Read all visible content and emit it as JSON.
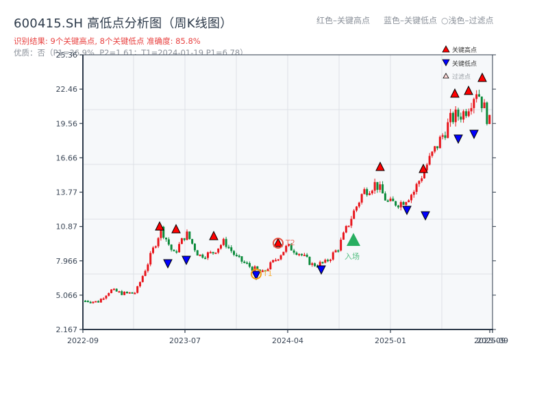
{
  "header": {
    "title": "600415.SH 高低点分析图（周K线图）",
    "result_line": "识别结果: 9个关键高点, 8个关键低点  准确度: 85.8%",
    "quality_line": "优质：否（P1=36.9%, P2=1.61；T1=2024-01-19 P1=6.78）"
  },
  "top_legend": {
    "red": "红色–关键高点",
    "blue": "蓝色–关键低点",
    "light": "○浅色–过滤点"
  },
  "chart_legend": {
    "high": "关键高点",
    "low": "关键低点",
    "filtered": "过滤点"
  },
  "annotations": {
    "t1": "T1",
    "t2": "T2",
    "entry": "入场"
  },
  "colors": {
    "up": "#e8141a",
    "down": "#0a8a3a",
    "high_marker": "#ff0000",
    "low_marker": "#0000ff",
    "t1_ring": "#f39c12",
    "t2_ring": "#e74c3c",
    "entry": "#27ae60",
    "axis": "#2d3a4a",
    "grid": "#dde1e6",
    "plot_bg": "#f6f8fa"
  },
  "chart_data": {
    "type": "candlestick",
    "title": "600415.SH 高低点分析图（周K线图）",
    "xlabel": "",
    "ylabel": "",
    "ylim": [
      2.167,
      25.36
    ],
    "y_ticks": [
      "25.36",
      "22.46",
      "19.56",
      "16.66",
      "13.77",
      "10.87",
      "7.966",
      "5.066",
      "2.167"
    ],
    "x_ticks": [
      "2022-09",
      "2023-07",
      "2024-04",
      "2025-01",
      "2025-09",
      "2025-09"
    ],
    "grid": true,
    "legend_position": "upper right",
    "legend": [
      "关键高点",
      "关键低点",
      "过滤点"
    ],
    "key_highs_count": 9,
    "key_lows_count": 8,
    "accuracy": "85.8%",
    "key_highs": [
      {
        "x_approx": "2023-04",
        "y": 10.9
      },
      {
        "x_approx": "2023-05",
        "y": 10.6
      },
      {
        "x_approx": "2023-09",
        "y": 10.0
      },
      {
        "x_approx": "2024-03",
        "y": 9.5,
        "label": "T2"
      },
      {
        "x_approx": "2024-12",
        "y": 15.8
      },
      {
        "x_approx": "2025-03",
        "y": 15.7
      },
      {
        "x_approx": "2025-06",
        "y": 22.0
      },
      {
        "x_approx": "2025-07",
        "y": 22.3
      },
      {
        "x_approx": "2025-08",
        "y": 23.4
      }
    ],
    "key_lows": [
      {
        "x_approx": "2023-04",
        "y": 7.9
      },
      {
        "x_approx": "2023-06",
        "y": 8.0
      },
      {
        "x_approx": "2024-01-19",
        "y": 6.78,
        "label": "T1"
      },
      {
        "x_approx": "2024-07",
        "y": 7.3
      },
      {
        "x_approx": "2025-02",
        "y": 12.3
      },
      {
        "x_approx": "2025-03",
        "y": 11.7
      },
      {
        "x_approx": "2025-06",
        "y": 18.6
      },
      {
        "x_approx": "2025-07",
        "y": 18.9
      }
    ],
    "entry": {
      "x_approx": "2024-09",
      "y": 9.8,
      "label": "入场"
    },
    "price_path_approx": [
      [
        "2022-09",
        4.6
      ],
      [
        "2022-11",
        4.5
      ],
      [
        "2022-12",
        5.5
      ],
      [
        "2023-02",
        5.2
      ],
      [
        "2023-03",
        5.3
      ],
      [
        "2023-04",
        7.9
      ],
      [
        "2023-04",
        10.7
      ],
      [
        "2023-05",
        8.5
      ],
      [
        "2023-06",
        10.3
      ],
      [
        "2023-06",
        8.4
      ],
      [
        "2023-08",
        8.6
      ],
      [
        "2023-09",
        9.6
      ],
      [
        "2023-10",
        8.2
      ],
      [
        "2023-12",
        7.5
      ],
      [
        "2024-01",
        6.9
      ],
      [
        "2024-02",
        8.0
      ],
      [
        "2024-03",
        9.2
      ],
      [
        "2024-05",
        8.6
      ],
      [
        "2024-07",
        7.6
      ],
      [
        "2024-08",
        7.8
      ],
      [
        "2024-09",
        9.0
      ],
      [
        "2024-10",
        11.5
      ],
      [
        "2024-11",
        13.8
      ],
      [
        "2024-12",
        14.5
      ],
      [
        "2025-01",
        12.8
      ],
      [
        "2025-02",
        12.9
      ],
      [
        "2025-03",
        13.8
      ],
      [
        "2025-04",
        16.0
      ],
      [
        "2025-05",
        18.0
      ],
      [
        "2025-06",
        20.0
      ],
      [
        "2025-07",
        20.5
      ],
      [
        "2025-08",
        22.5
      ],
      [
        "2025-09",
        19.6
      ]
    ]
  }
}
